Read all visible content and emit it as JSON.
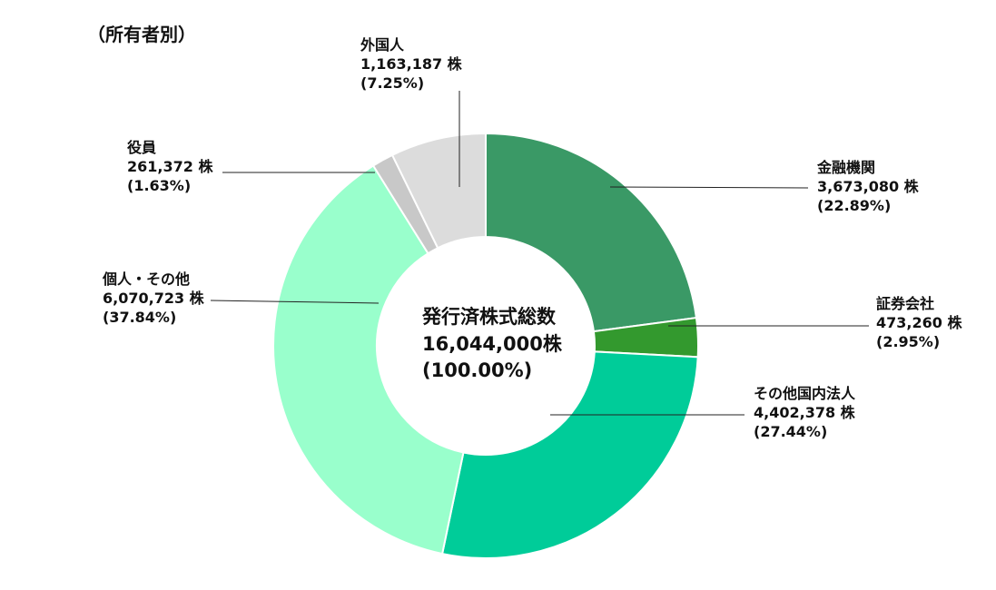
{
  "heading": "（所有者別）",
  "chart_data": {
    "type": "pie",
    "variant": "donut",
    "center": {
      "line1": "発行済株式総数",
      "line2": "16,044,000株",
      "line3": "(100.00%)"
    },
    "slices": [
      {
        "name": "金融機関",
        "shares": "3,673,080 株",
        "pct": "(22.89%)",
        "value": 22.89,
        "color": "#3a9966"
      },
      {
        "name": "証券会社",
        "shares": "473,260 株",
        "pct": "(2.95%)",
        "value": 2.95,
        "color": "#33992e"
      },
      {
        "name": "その他国内法人",
        "shares": "4,402,378 株",
        "pct": "(27.44%)",
        "value": 27.44,
        "color": "#00cc99"
      },
      {
        "name": "個人・その他",
        "shares": "6,070,723 株",
        "pct": "(37.84%)",
        "value": 37.84,
        "color": "#99ffcc"
      },
      {
        "name": "役員",
        "shares": "261,372 株",
        "pct": "(1.63%)",
        "value": 1.63,
        "color": "#c8c8c8"
      },
      {
        "name": "外国人",
        "shares": "1,163,187 株",
        "pct": "(7.25%)",
        "value": 7.25,
        "color": "#dcdcdc"
      }
    ]
  }
}
